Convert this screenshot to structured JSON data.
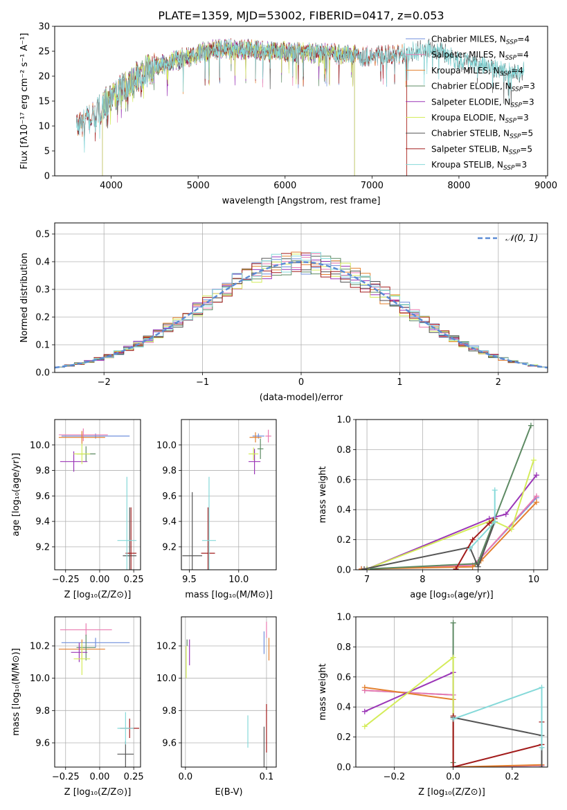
{
  "figure_title": "PLATE=1359, MJD=53002, FIBERID=0417, z=0.053",
  "colors": {
    "Chabrier MILES": "#6f8fdc",
    "Salpeter MILES": "#ea7ab0",
    "Kroupa MILES": "#e3802f",
    "Chabrier ELODIE": "#5d8a63",
    "Salpeter ELODIE": "#9b36b7",
    "Kroupa ELODIE": "#d4ec5a",
    "Chabrier STELIB": "#555555",
    "Salpeter STELIB": "#a21b1b",
    "Kroupa STELIB": "#85d9d9",
    "normal": "#5b8bd4"
  },
  "chart_data": [
    {
      "id": "spectrum",
      "type": "line",
      "title": "PLATE=1359, MJD=53002, FIBERID=0417, z=0.053",
      "xlabel": "wavelength [Angstrom, rest frame]",
      "ylabel": "Flux [fλ10⁻¹⁷ erg cm⁻² s⁻¹ A⁻¹]",
      "xlim": [
        3350,
        9020
      ],
      "ylim": [
        0,
        30
      ],
      "xticks": [
        4000,
        5000,
        6000,
        7000,
        8000,
        9000
      ],
      "yticks": [
        0,
        5,
        10,
        15,
        20,
        25,
        30
      ],
      "grid": false,
      "legend_position": "upper right",
      "series": [
        {
          "name": "Chabrier MILES, N_SSP=4",
          "color_key": "Chabrier MILES",
          "range": [
            3600,
            7400
          ]
        },
        {
          "name": "Salpeter MILES, N_SSP=4",
          "color_key": "Salpeter MILES",
          "range": [
            3600,
            7400
          ]
        },
        {
          "name": "Kroupa MILES, N_SSP=4",
          "color_key": "Kroupa MILES",
          "range": [
            3600,
            7400
          ]
        },
        {
          "name": "Chabrier ELODIE, N_SSP=3",
          "color_key": "Chabrier ELODIE",
          "range": [
            3900,
            6800
          ]
        },
        {
          "name": "Salpeter ELODIE, N_SSP=3",
          "color_key": "Salpeter ELODIE",
          "range": [
            3900,
            6800
          ]
        },
        {
          "name": "Kroupa ELODIE, N_SSP=3",
          "color_key": "Kroupa ELODIE",
          "range": [
            3900,
            6800
          ]
        },
        {
          "name": "Chabrier STELIB, N_SSP=5",
          "color_key": "Chabrier STELIB",
          "range": [
            3600,
            8750
          ]
        },
        {
          "name": "Salpeter STELIB, N_SSP=5",
          "color_key": "Salpeter STELIB",
          "range": [
            3600,
            7400
          ]
        },
        {
          "name": "Kroupa STELIB, N_SSP=3",
          "color_key": "Kroupa STELIB",
          "range": [
            3600,
            8750
          ]
        }
      ],
      "continuum": {
        "wavelength": [
          3600,
          3700,
          3800,
          3950,
          4100,
          4300,
          4500,
          4800,
          5000,
          5200,
          5500,
          5800,
          6000,
          6300,
          6600,
          7000,
          7400,
          7600,
          7800,
          8000,
          8300,
          8600,
          8750
        ],
        "flux": [
          10,
          11,
          12,
          15,
          17,
          20,
          22,
          23.5,
          24.5,
          25.5,
          25.5,
          25,
          25,
          24.8,
          24.5,
          24,
          24.5,
          25.5,
          25,
          23,
          22,
          21,
          21
        ]
      }
    },
    {
      "id": "residuals",
      "type": "histogram",
      "xlabel": "(data-model)/error",
      "ylabel": "Normed distribution",
      "xlim": [
        -2.5,
        2.5
      ],
      "ylim": [
        0,
        0.54
      ],
      "xticks": [
        -2,
        -1,
        0,
        1,
        2
      ],
      "yticks": [
        0.0,
        0.1,
        0.2,
        0.3,
        0.4,
        0.5
      ],
      "grid": true,
      "legend_position": "upper right",
      "reference_label": "𝒩(0, 1)",
      "bin_width": 0.1,
      "bin_start": -2.5
    },
    {
      "id": "z-age",
      "type": "errorbar",
      "xlabel": "Z [log₁₀(Z/Z⊙)]",
      "ylabel": "age  [log₁₀(age/yr)]",
      "xlim": [
        -0.33,
        0.3
      ],
      "ylim": [
        9.02,
        10.2
      ],
      "xticks": [
        -0.25,
        0.0,
        0.25
      ],
      "yticks": [
        9.2,
        9.4,
        9.6,
        9.8,
        10.0
      ],
      "points": [
        {
          "key": "Chabrier MILES",
          "x": -0.03,
          "xerr": 0.25,
          "y": 10.07,
          "yerr": 0.02
        },
        {
          "key": "Salpeter MILES",
          "x": -0.12,
          "xerr": 0.18,
          "y": 10.08,
          "yerr": 0.05
        },
        {
          "key": "Kroupa MILES",
          "x": -0.13,
          "xerr": 0.17,
          "y": 10.06,
          "yerr": 0.05
        },
        {
          "key": "Chabrier ELODIE",
          "x": -0.1,
          "xerr": 0.07,
          "y": 9.93,
          "yerr": 0.06
        },
        {
          "key": "Salpeter ELODIE",
          "x": -0.19,
          "xerr": 0.1,
          "y": 9.87,
          "yerr": 0.08
        },
        {
          "key": "Kroupa ELODIE",
          "x": -0.13,
          "xerr": 0.06,
          "y": 9.93,
          "yerr": 0.08
        },
        {
          "key": "Chabrier STELIB",
          "x": 0.22,
          "xerr": 0.05,
          "y": 9.13,
          "yerr": 0.38
        },
        {
          "key": "Salpeter STELIB",
          "x": 0.23,
          "xerr": 0.04,
          "y": 9.15,
          "yerr": 0.36
        },
        {
          "key": "Kroupa STELIB",
          "x": 0.2,
          "xerr": 0.07,
          "y": 9.25,
          "yerr": 0.5
        }
      ]
    },
    {
      "id": "mass-age",
      "type": "errorbar",
      "xlabel": "mass [log₁₀(M/M⊙)]",
      "ylabel": "",
      "xlim": [
        9.42,
        10.38
      ],
      "ylim": [
        9.02,
        10.2
      ],
      "xticks": [
        9.5,
        10.0
      ],
      "yticks": [
        9.2,
        9.4,
        9.6,
        9.8,
        10.0
      ],
      "points": [
        {
          "key": "Chabrier MILES",
          "x": 10.2,
          "xerr": 0.06,
          "y": 10.07,
          "yerr": 0.02
        },
        {
          "key": "Salpeter MILES",
          "x": 10.3,
          "xerr": 0.03,
          "y": 10.07,
          "yerr": 0.05
        },
        {
          "key": "Kroupa MILES",
          "x": 10.17,
          "xerr": 0.06,
          "y": 10.06,
          "yerr": 0.04
        },
        {
          "key": "Chabrier ELODIE",
          "x": 10.22,
          "xerr": 0.03,
          "y": 9.97,
          "yerr": 0.08
        },
        {
          "key": "Salpeter ELODIE",
          "x": 10.16,
          "xerr": 0.06,
          "y": 9.87,
          "yerr": 0.1
        },
        {
          "key": "Kroupa ELODIE",
          "x": 10.15,
          "xerr": 0.05,
          "y": 9.93,
          "yerr": 0.05
        },
        {
          "key": "Chabrier STELIB",
          "x": 9.53,
          "xerr": 0.1,
          "y": 9.13,
          "yerr": 0.5
        },
        {
          "key": "Salpeter STELIB",
          "x": 9.69,
          "xerr": 0.07,
          "y": 9.15,
          "yerr": 0.36
        },
        {
          "key": "Kroupa STELIB",
          "x": 9.7,
          "xerr": 0.07,
          "y": 9.25,
          "yerr": 0.5
        }
      ]
    },
    {
      "id": "age-weight",
      "type": "line",
      "xlabel": "age  [log₁₀(age/yr)]",
      "ylabel": "mass weight",
      "xlim": [
        6.8,
        10.25
      ],
      "ylim": [
        0,
        1.0
      ],
      "xticks": [
        7,
        8,
        9,
        10
      ],
      "yticks": [
        0.0,
        0.2,
        0.4,
        0.6,
        0.8,
        1.0
      ],
      "grid": true,
      "series": [
        {
          "key": "Chabrier MILES",
          "x": [
            6.9,
            8.9,
            9.05,
            10.05
          ],
          "y": [
            0.005,
            0.03,
            0.08,
            0.48
          ]
        },
        {
          "key": "Salpeter MILES",
          "x": [
            6.9,
            8.9,
            9.05,
            10.05
          ],
          "y": [
            0.005,
            0.03,
            0.08,
            0.49
          ]
        },
        {
          "key": "Kroupa MILES",
          "x": [
            6.9,
            8.9,
            9.05,
            10.05
          ],
          "y": [
            0.005,
            0.02,
            0.06,
            0.45
          ]
        },
        {
          "key": "Chabrier ELODIE",
          "x": [
            7.0,
            8.95,
            9.0,
            9.95
          ],
          "y": [
            0.005,
            0.04,
            0.05,
            0.96
          ]
        },
        {
          "key": "Salpeter ELODIE",
          "x": [
            7.0,
            9.2,
            9.5,
            10.05
          ],
          "y": [
            0.005,
            0.34,
            0.37,
            0.63
          ]
        },
        {
          "key": "Kroupa ELODIE",
          "x": [
            7.0,
            9.25,
            9.6,
            10.0
          ],
          "y": [
            0.005,
            0.33,
            0.27,
            0.73
          ]
        },
        {
          "key": "Chabrier STELIB",
          "x": [
            6.95,
            8.85,
            9.0,
            9.3
          ],
          "y": [
            0.005,
            0.15,
            0.02,
            0.32
          ]
        },
        {
          "key": "Salpeter STELIB",
          "x": [
            8.6,
            8.9,
            9.2,
            9.3
          ],
          "y": [
            0.005,
            0.2,
            0.31,
            0.34
          ]
        },
        {
          "key": "Kroupa STELIB",
          "x": [
            8.85,
            9.3,
            9.3
          ],
          "y": [
            0.14,
            0.32,
            0.53
          ]
        }
      ]
    },
    {
      "id": "z-mass",
      "type": "errorbar",
      "xlabel": "Z [log₁₀(Z/Z⊙)]",
      "ylabel": "mass [log₁₀(M/M⊙)]",
      "xlim": [
        -0.33,
        0.3
      ],
      "ylim": [
        9.45,
        10.38
      ],
      "xticks": [
        -0.25,
        0.0,
        0.25
      ],
      "yticks": [
        9.6,
        9.8,
        10.0,
        10.2
      ],
      "points": [
        {
          "key": "Chabrier MILES",
          "x": -0.03,
          "xerr": 0.25,
          "y": 10.22,
          "yerr": 0.03
        },
        {
          "key": "Salpeter MILES",
          "x": -0.1,
          "xerr": 0.19,
          "y": 10.3,
          "yerr": 0.04
        },
        {
          "key": "Kroupa MILES",
          "x": -0.13,
          "xerr": 0.17,
          "y": 10.18,
          "yerr": 0.06
        },
        {
          "key": "Chabrier ELODIE",
          "x": -0.1,
          "xerr": 0.07,
          "y": 10.19,
          "yerr": 0.08
        },
        {
          "key": "Salpeter ELODIE",
          "x": -0.15,
          "xerr": 0.06,
          "y": 10.16,
          "yerr": 0.06
        },
        {
          "key": "Kroupa ELODIE",
          "x": -0.13,
          "xerr": 0.06,
          "y": 10.12,
          "yerr": 0.1
        },
        {
          "key": "Chabrier STELIB",
          "x": 0.19,
          "xerr": 0.06,
          "y": 9.53,
          "yerr": 0.08
        },
        {
          "key": "Salpeter STELIB",
          "x": 0.22,
          "xerr": 0.07,
          "y": 9.69,
          "yerr": 0.06
        },
        {
          "key": "Kroupa STELIB",
          "x": 0.19,
          "xerr": 0.06,
          "y": 9.69,
          "yerr": 0.1
        }
      ]
    },
    {
      "id": "ebv-mass",
      "type": "errorbar",
      "xlabel": "E(B-V)",
      "ylabel": "",
      "xlim": [
        -0.005,
        0.112
      ],
      "ylim": [
        9.45,
        10.38
      ],
      "xticks": [
        0.0,
        0.1
      ],
      "yticks": [
        9.6,
        9.8,
        10.0,
        10.2
      ],
      "points": [
        {
          "key": "Chabrier MILES",
          "x": 0.097,
          "xerr": 0,
          "y": 10.22,
          "yerr": 0.07
        },
        {
          "key": "Salpeter MILES",
          "x": 0.1,
          "xerr": 0,
          "y": 10.3,
          "yerr": 0.05
        },
        {
          "key": "Kroupa MILES",
          "x": 0.103,
          "xerr": 0,
          "y": 10.18,
          "yerr": 0.07
        },
        {
          "key": "Chabrier ELODIE",
          "x": 0.002,
          "xerr": 0,
          "y": 10.22,
          "yerr": 0.02
        },
        {
          "key": "Salpeter ELODIE",
          "x": 0.005,
          "xerr": 0,
          "y": 10.16,
          "yerr": 0.08
        },
        {
          "key": "Kroupa ELODIE",
          "x": 0.001,
          "xerr": 0,
          "y": 10.1,
          "yerr": 0.1
        },
        {
          "key": "Chabrier STELIB",
          "x": 0.097,
          "xerr": 0,
          "y": 9.53,
          "yerr": 0.17
        },
        {
          "key": "Salpeter STELIB",
          "x": 0.1,
          "xerr": 0,
          "y": 9.69,
          "yerr": 0.15
        },
        {
          "key": "Kroupa STELIB",
          "x": 0.077,
          "xerr": 0,
          "y": 9.67,
          "yerr": 0.1
        }
      ]
    },
    {
      "id": "z-weight",
      "type": "line",
      "xlabel": "Z [log₁₀(Z/Z⊙)]",
      "ylabel": "mass weight",
      "xlim": [
        -0.33,
        0.32
      ],
      "ylim": [
        0,
        1.0
      ],
      "xticks": [
        -0.2,
        0.0,
        0.2
      ],
      "yticks": [
        0.0,
        0.2,
        0.4,
        0.6,
        0.8,
        1.0
      ],
      "grid": true,
      "series": [
        {
          "key": "Chabrier MILES",
          "x": [
            -0.3,
            0.0,
            0.0,
            0.3
          ],
          "y": [
            0.51,
            0.48,
            0.0,
            0.01
          ]
        },
        {
          "key": "Salpeter MILES",
          "x": [
            -0.3,
            0.0,
            0.0,
            0.3
          ],
          "y": [
            0.51,
            0.48,
            0.0,
            0.01
          ]
        },
        {
          "key": "Kroupa MILES",
          "x": [
            -0.3,
            0.0,
            0.0,
            0.3
          ],
          "y": [
            0.53,
            0.45,
            0.0,
            0.015
          ]
        },
        {
          "key": "Chabrier ELODIE",
          "x": [
            0.0,
            0.0,
            0.0
          ],
          "y": [
            0.96,
            0.03,
            0.0
          ]
        },
        {
          "key": "Salpeter ELODIE",
          "x": [
            -0.3,
            0.0,
            0.0
          ],
          "y": [
            0.37,
            0.63,
            0.0
          ]
        },
        {
          "key": "Kroupa ELODIE",
          "x": [
            -0.3,
            0.0,
            0.0
          ],
          "y": [
            0.27,
            0.73,
            0.0
          ]
        },
        {
          "key": "Chabrier STELIB",
          "x": [
            0.0,
            0.3,
            0.3
          ],
          "y": [
            0.33,
            0.21,
            0.0
          ]
        },
        {
          "key": "Salpeter STELIB",
          "x": [
            0.0,
            0.0,
            0.3,
            0.3
          ],
          "y": [
            0.34,
            0.0,
            0.15,
            0.3
          ]
        },
        {
          "key": "Kroupa STELIB",
          "x": [
            0.0,
            0.3,
            0.3
          ],
          "y": [
            0.32,
            0.53,
            0.13
          ]
        }
      ]
    }
  ]
}
